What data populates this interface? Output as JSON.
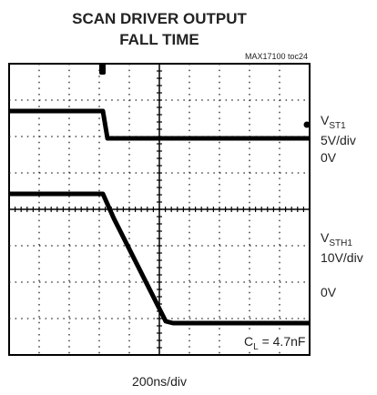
{
  "title": [
    "SCAN DRIVER OUTPUT",
    "FALL TIME"
  ],
  "figure_id": "MAX17100 toc24",
  "channels": [
    {
      "symbol": "V",
      "subscript": "ST1",
      "scale": "5V/div",
      "zero": "0V"
    },
    {
      "symbol": "V",
      "subscript": "STH1",
      "scale": "10V/div",
      "zero": "0V"
    }
  ],
  "load": {
    "symbol": "C",
    "subscript": "L",
    "text": " = 4.7nF"
  },
  "timebase": "200ns/div"
}
